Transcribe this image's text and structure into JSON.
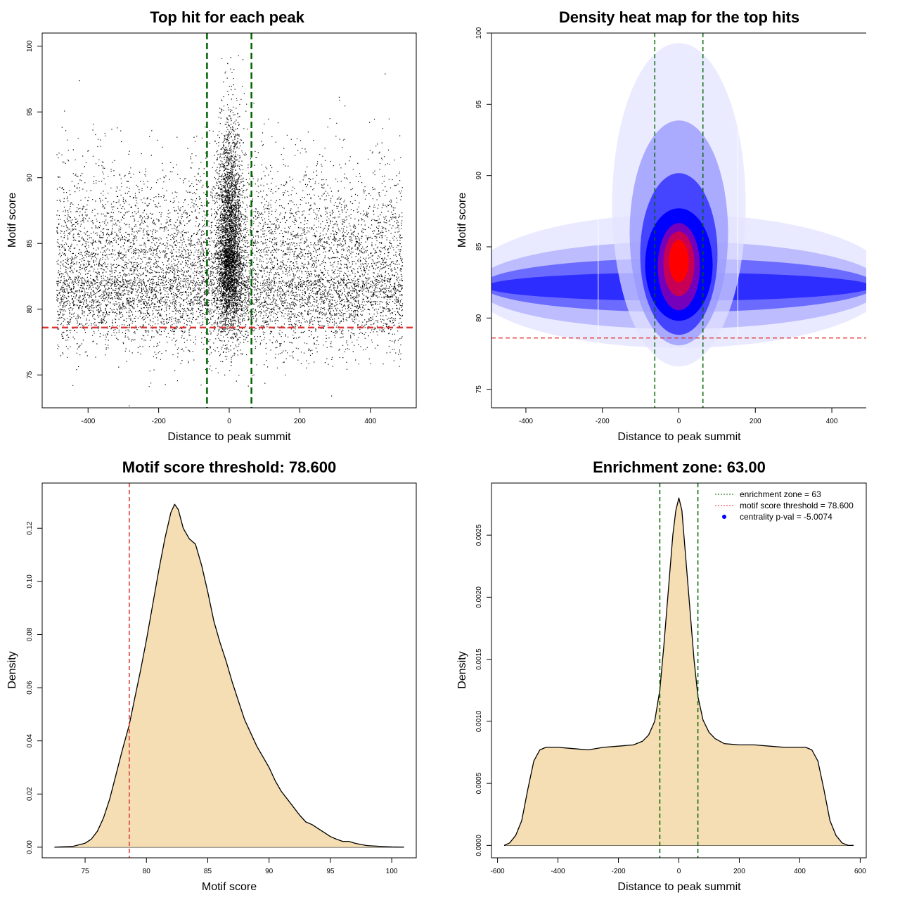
{
  "colors": {
    "zone_line": "#006400",
    "threshold_line": "#dd3333",
    "density_fill": "#f5deb3",
    "heat_low": "#ffffff",
    "heat_mid": "#0000ff",
    "heat_high": "#ff0000",
    "dot": "#000000",
    "pval_marker": "#0000ff"
  },
  "chart_data": [
    {
      "id": "scatter",
      "type": "scatter",
      "title": "Top hit for each peak",
      "xlabel": "Distance to peak summit",
      "ylabel": "Motif score",
      "xlim": [
        -530,
        530
      ],
      "ylim": [
        72.5,
        101
      ],
      "xticks": [
        -400,
        -200,
        0,
        200,
        400
      ],
      "yticks": [
        75,
        80,
        85,
        90,
        95,
        100
      ],
      "vlines": [
        -63,
        63
      ],
      "hline": 78.6,
      "background": {
        "xrange": [
          -490,
          490
        ],
        "mode": 82.3,
        "spread": 3.1,
        "n": 9000
      },
      "central": {
        "center": 0,
        "xspread": 18,
        "mode": 84.5,
        "yspread": 3.6,
        "n": 3600
      }
    },
    {
      "id": "heatmap",
      "type": "heatmap",
      "title": "Density heat map for the top hits",
      "xlabel": "Distance to peak summit",
      "ylabel": "Motif score",
      "xlim": [
        -490,
        490
      ],
      "ylim": [
        73.7,
        100
      ],
      "xticks": [
        -400,
        -200,
        0,
        200,
        400
      ],
      "yticks": [
        75,
        80,
        85,
        90,
        95,
        100
      ],
      "vlines": [
        -63,
        63
      ],
      "hline": 78.6,
      "peak": {
        "x": 0,
        "y": 84
      }
    },
    {
      "id": "score_density",
      "type": "area",
      "title": "Motif score threshold: 78.600",
      "xlabel": "Motif score",
      "ylabel": "Density",
      "xlim": [
        71.5,
        102
      ],
      "ylim": [
        -0.004,
        0.137
      ],
      "xticks": [
        75,
        80,
        85,
        90,
        95,
        100
      ],
      "yticks": [
        0.0,
        0.02,
        0.04,
        0.06,
        0.08,
        0.1,
        0.12
      ],
      "ytick_labels": [
        "0.00",
        "0.02",
        "0.04",
        "0.06",
        "0.08",
        "0.10",
        "0.12"
      ],
      "vline": 78.6,
      "x": [
        72.5,
        74,
        75,
        75.5,
        76,
        76.5,
        77,
        77.5,
        78,
        78.6,
        79,
        79.5,
        80,
        80.5,
        81,
        81.5,
        82,
        82.3,
        82.6,
        83,
        83.5,
        84,
        84.5,
        85,
        85.5,
        86,
        86.5,
        87,
        87.5,
        88,
        88.5,
        89,
        89.5,
        90,
        90.5,
        91,
        91.5,
        92,
        92.5,
        93,
        93.5,
        94,
        94.5,
        95,
        95.5,
        96,
        96.5,
        97,
        97.5,
        98,
        99,
        100,
        101
      ],
      "y": [
        0.0,
        0.0003,
        0.0015,
        0.003,
        0.006,
        0.011,
        0.018,
        0.027,
        0.036,
        0.046,
        0.055,
        0.066,
        0.078,
        0.091,
        0.104,
        0.116,
        0.126,
        0.129,
        0.127,
        0.12,
        0.116,
        0.114,
        0.106,
        0.096,
        0.085,
        0.077,
        0.07,
        0.062,
        0.055,
        0.048,
        0.043,
        0.038,
        0.034,
        0.03,
        0.025,
        0.021,
        0.018,
        0.015,
        0.012,
        0.0095,
        0.0085,
        0.007,
        0.0055,
        0.004,
        0.003,
        0.0022,
        0.0022,
        0.0015,
        0.001,
        0.0006,
        0.0003,
        0.0001,
        0.0
      ]
    },
    {
      "id": "distance_density",
      "type": "area",
      "title": "Enrichment zone: 63.00",
      "xlabel": "Distance to peak summit",
      "ylabel": "Density",
      "xlim": [
        -620,
        620
      ],
      "ylim": [
        -0.0001,
        0.00292
      ],
      "xticks": [
        -600,
        -400,
        -200,
        0,
        200,
        400,
        600
      ],
      "yticks": [
        0.0,
        0.0005,
        0.001,
        0.0015,
        0.002,
        0.0025
      ],
      "ytick_labels": [
        "0.0000",
        "0.0005",
        "0.0010",
        "0.0015",
        "0.0020",
        "0.0025"
      ],
      "vlines": [
        -63,
        63
      ],
      "x": [
        -578,
        -560,
        -540,
        -520,
        -500,
        -480,
        -460,
        -440,
        -400,
        -350,
        -300,
        -250,
        -200,
        -150,
        -120,
        -100,
        -80,
        -63,
        -50,
        -40,
        -30,
        -20,
        -10,
        0,
        10,
        20,
        30,
        40,
        50,
        63,
        80,
        100,
        120,
        150,
        200,
        250,
        300,
        350,
        400,
        420,
        440,
        460,
        480,
        500,
        520,
        540,
        560,
        578
      ],
      "y": [
        0.0,
        2e-05,
        8e-05,
        0.0002,
        0.00045,
        0.00068,
        0.00077,
        0.00079,
        0.00079,
        0.00078,
        0.00077,
        0.00079,
        0.0008,
        0.00081,
        0.00084,
        0.00089,
        0.001,
        0.00125,
        0.0016,
        0.0019,
        0.0022,
        0.0025,
        0.0027,
        0.0028,
        0.0027,
        0.0024,
        0.0021,
        0.0018,
        0.0015,
        0.0012,
        0.00101,
        0.00091,
        0.00086,
        0.00082,
        0.00081,
        0.00081,
        0.0008,
        0.00079,
        0.00079,
        0.00079,
        0.00077,
        0.00068,
        0.00045,
        0.0002,
        8e-05,
        2e-05,
        0.0,
        0.0
      ]
    }
  ],
  "legend": {
    "items": [
      {
        "label": "enrichment zone = 63",
        "marker": "dotted-line",
        "color_key": "zone_line"
      },
      {
        "label": "motif score threshold = 78.600",
        "marker": "dotted-line",
        "color_key": "threshold_line"
      },
      {
        "label": "centrality p-val = -5.0074",
        "marker": "dot",
        "color_key": "pval_marker"
      }
    ]
  }
}
